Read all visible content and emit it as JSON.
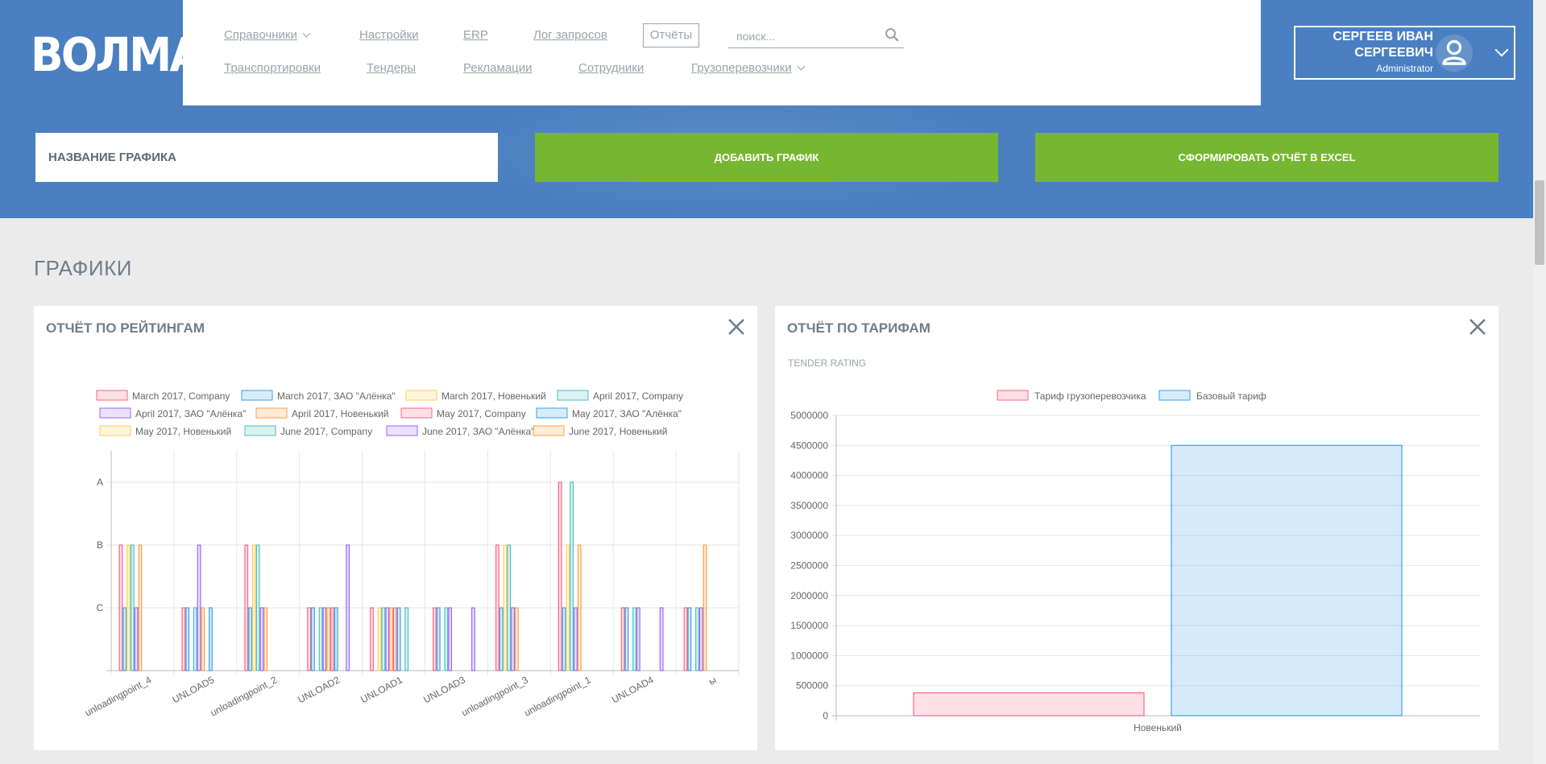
{
  "header": {
    "logo": "ВОЛМА",
    "nav_row1": [
      {
        "label": "Справочники",
        "dropdown": true
      },
      {
        "label": "Настройки"
      },
      {
        "label": "ERP"
      },
      {
        "label": "Лог запросов"
      }
    ],
    "reports_button": "Отчёты",
    "search_placeholder": "поиск...",
    "nav_row2": [
      {
        "label": "Транспортировки"
      },
      {
        "label": "Тендеры"
      },
      {
        "label": "Рекламации"
      },
      {
        "label": "Сотрудники"
      },
      {
        "label": "Грузоперевозчики",
        "dropdown": true
      }
    ],
    "user": {
      "name_line1": "СЕРГЕЕВ ИВАН",
      "name_line2": "СЕРГЕЕВИЧ",
      "role": "Administrator"
    }
  },
  "toolbar": {
    "chart_name_placeholder": "НАЗВАНИЕ ГРАФИКА",
    "add_chart": "ДОБАВИТЬ ГРАФИК",
    "export_excel": "СФОРМИРОВАТЬ ОТЧЁТ В EXCEL"
  },
  "section_title": "ГРАФИКИ",
  "colors": {
    "brand": "#4a7fc1",
    "accent_green": "#77b631"
  },
  "cards": [
    {
      "title": "ОТЧЁТ ПО РЕЙТИНГАМ"
    },
    {
      "title": "ОТЧЁТ ПО ТАРИФАМ",
      "subtitle": "TENDER RATING"
    }
  ],
  "chart_data": [
    {
      "type": "bar",
      "title": "ОТЧЁТ ПО РЕЙТИНГАМ",
      "categories": [
        "unloadingpoint_4",
        "UNLOAD5",
        "unloadingpoint_2",
        "UNLOAD2",
        "UNLOAD1",
        "UNLOAD3",
        "unloadingpoint_3",
        "unloadingpoint_1",
        "UNLOAD4",
        "ы"
      ],
      "y_tick_labels": [
        "A",
        "B",
        "C"
      ],
      "y_scale_note": "A=3, B=2, C=1, 0=none",
      "ylim": [
        0,
        3.5
      ],
      "legend_position": "top",
      "series": [
        {
          "name": "March 2017, Company",
          "color": "#ff6384",
          "values": [
            2,
            1,
            2,
            1,
            1,
            1,
            2,
            3,
            1,
            1
          ]
        },
        {
          "name": "March 2017, ЗАО \"Алёнка\"",
          "color": "#36a2eb",
          "values": [
            1,
            1,
            1,
            1,
            0,
            1,
            1,
            1,
            1,
            1
          ]
        },
        {
          "name": "March 2017, Новенький",
          "color": "#ffce56",
          "values": [
            2,
            0,
            2,
            0,
            1,
            0,
            2,
            2,
            0,
            0
          ]
        },
        {
          "name": "April 2017, Company",
          "color": "#4bc0c0",
          "values": [
            2,
            1,
            2,
            1,
            1,
            1,
            2,
            3,
            1,
            1
          ]
        },
        {
          "name": "April 2017, ЗАО \"Алёнка\"",
          "color": "#9966ff",
          "values": [
            1,
            2,
            1,
            1,
            1,
            1,
            1,
            1,
            1,
            1
          ]
        },
        {
          "name": "April 2017, Новенький",
          "color": "#ff9f40",
          "values": [
            2,
            1,
            1,
            1,
            1,
            0,
            1,
            2,
            0,
            2
          ]
        },
        {
          "name": "May 2017, Company",
          "color": "#ff6384",
          "values": [
            0,
            0,
            0,
            1,
            1,
            0,
            0,
            0,
            0,
            0
          ]
        },
        {
          "name": "May 2017, ЗАО \"Алёнка\"",
          "color": "#36a2eb",
          "values": [
            0,
            1,
            0,
            1,
            1,
            0,
            0,
            0,
            0,
            0
          ]
        },
        {
          "name": "May 2017, Новенький",
          "color": "#ffce56",
          "values": [
            0,
            0,
            0,
            0,
            0,
            0,
            0,
            0,
            0,
            0
          ]
        },
        {
          "name": "June 2017, Company",
          "color": "#4bc0c0",
          "values": [
            0,
            0,
            0,
            0,
            1,
            0,
            0,
            0,
            0,
            0
          ]
        },
        {
          "name": "June 2017, ЗАО \"Алёнка\"",
          "color": "#9966ff",
          "values": [
            0,
            0,
            0,
            2,
            0,
            1,
            0,
            0,
            1,
            0
          ]
        },
        {
          "name": "June 2017, Новенький",
          "color": "#ff9f40",
          "values": [
            0,
            0,
            0,
            0,
            0,
            0,
            0,
            0,
            0,
            0
          ]
        }
      ]
    },
    {
      "type": "bar",
      "title": "ОТЧЁТ ПО ТАРИФАМ",
      "subtitle": "TENDER RATING",
      "categories": [
        "Новенький"
      ],
      "ylim": [
        0,
        5000000
      ],
      "y_ticks": [
        0,
        500000,
        1000000,
        1500000,
        2000000,
        2500000,
        3000000,
        3500000,
        4000000,
        4500000,
        5000000
      ],
      "legend_position": "top",
      "series": [
        {
          "name": "Тариф грузоперевозчика",
          "color": "#ff6384",
          "values": [
            380000
          ]
        },
        {
          "name": "Базовый тариф",
          "color": "#36a2eb",
          "values": [
            4500000
          ]
        }
      ]
    }
  ]
}
